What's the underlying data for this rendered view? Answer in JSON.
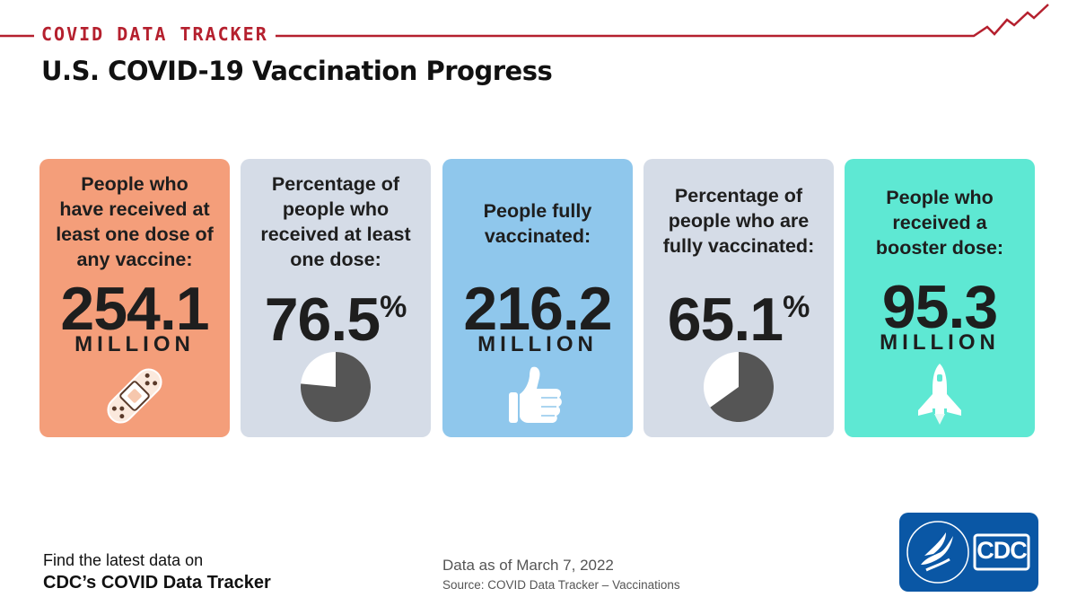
{
  "header": {
    "brand": "COVID DATA TRACKER",
    "title": "U.S. COVID-19 Vaccination Progress",
    "accent_color": "#b5202e"
  },
  "cards": [
    {
      "label_lines": [
        "People who",
        "have received at",
        "least one dose of",
        "any vaccine:"
      ],
      "value": "254.1",
      "unit": "MILLION",
      "icon": "bandage-icon",
      "color": "#f49e7a"
    },
    {
      "label_lines": [
        "Percentage of",
        "people who",
        "received at least",
        "one dose:"
      ],
      "value": "76.5",
      "suffix": "%",
      "icon": "pie-chart-icon",
      "pie_fraction": 0.765,
      "color": "#d5dce7"
    },
    {
      "label_lines": [
        "People fully",
        "vaccinated:"
      ],
      "value": "216.2",
      "unit": "MILLION",
      "icon": "thumbs-up-icon",
      "color": "#8fc7ec"
    },
    {
      "label_lines": [
        "Percentage of",
        "people who are",
        "fully vaccinated:"
      ],
      "value": "65.1",
      "suffix": "%",
      "icon": "pie-chart-icon",
      "pie_fraction": 0.651,
      "color": "#d5dce7"
    },
    {
      "label_lines": [
        "People who",
        "received a",
        "booster dose:"
      ],
      "value": "95.3",
      "unit": "MILLION",
      "icon": "space-shuttle-icon",
      "color": "#5ee8d3"
    }
  ],
  "footer": {
    "find_line": "Find the latest data on",
    "tracker_line": "CDC’s COVID Data Tracker",
    "as_of": "Data as of March 7, 2022",
    "source": "Source: COVID Data Tracker – Vaccinations",
    "logo_text": "CDC",
    "logo_color": "#0a57a5"
  }
}
